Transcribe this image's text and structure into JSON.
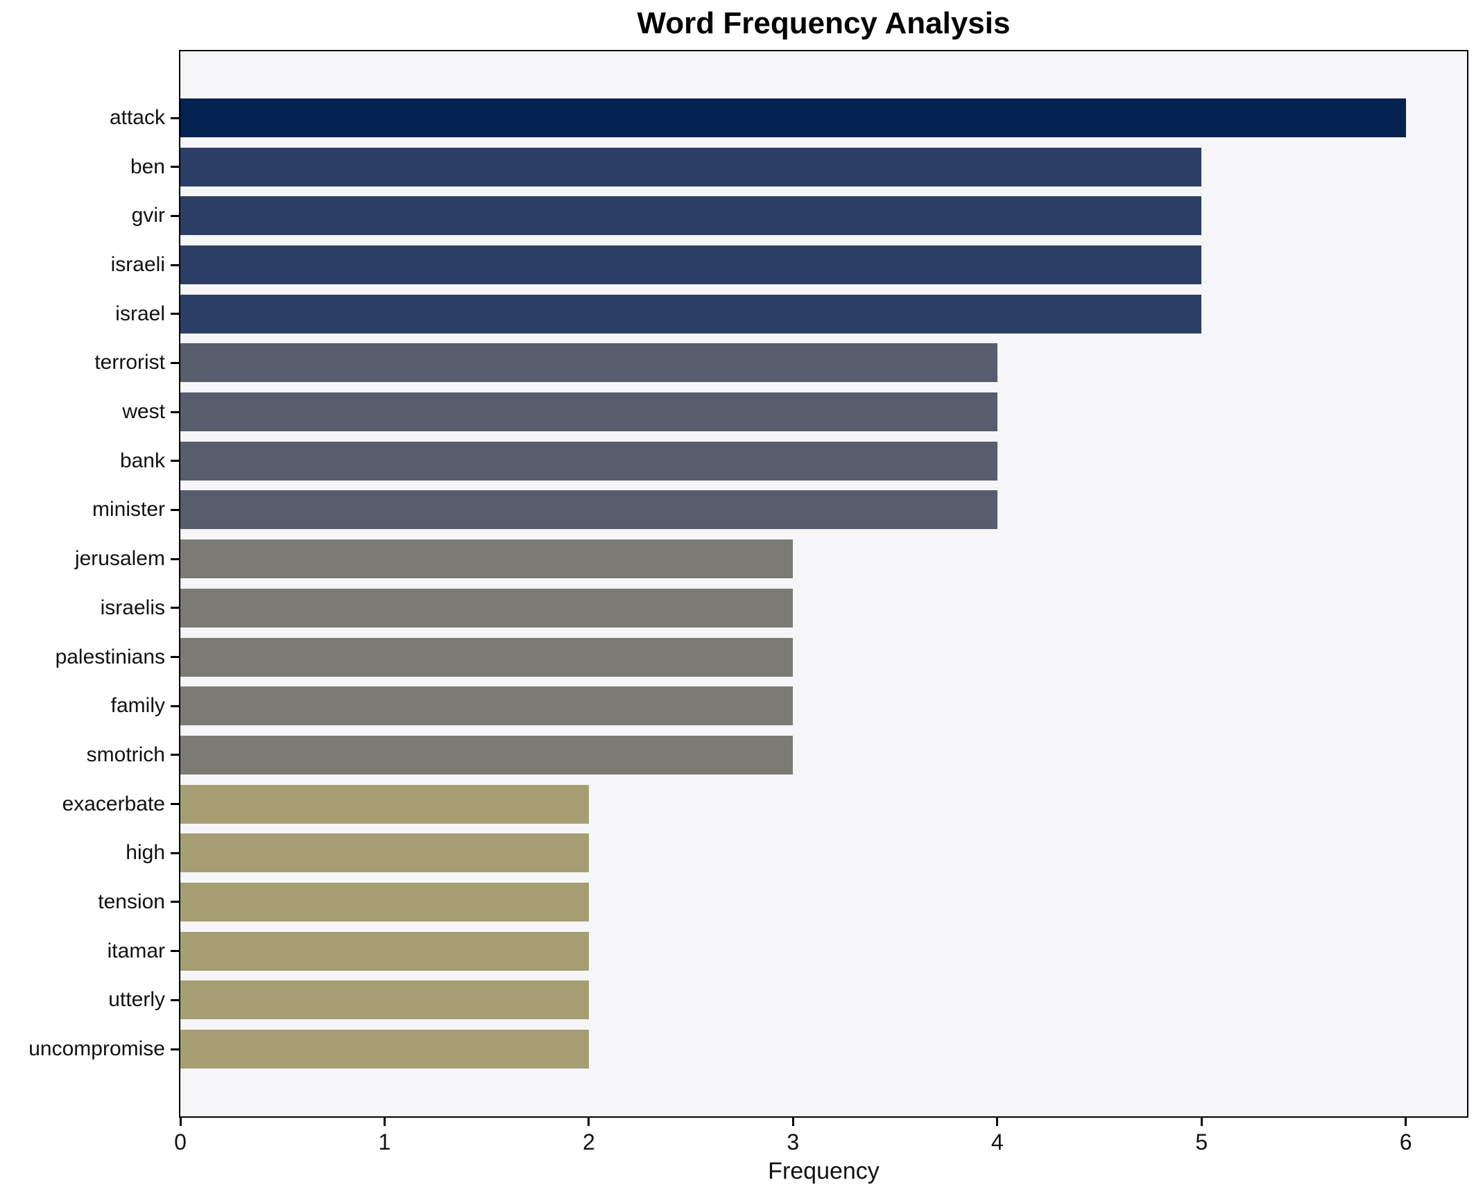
{
  "chart_data": {
    "type": "bar",
    "orientation": "horizontal",
    "title": "Word Frequency Analysis",
    "xlabel": "Frequency",
    "ylabel": "",
    "categories": [
      "attack",
      "ben",
      "gvir",
      "israeli",
      "israel",
      "terrorist",
      "west",
      "bank",
      "minister",
      "jerusalem",
      "israelis",
      "palestinians",
      "family",
      "smotrich",
      "exacerbate",
      "high",
      "tension",
      "itamar",
      "utterly",
      "uncompromise"
    ],
    "values": [
      6,
      5,
      5,
      5,
      5,
      4,
      4,
      4,
      4,
      3,
      3,
      3,
      3,
      3,
      2,
      2,
      2,
      2,
      2,
      2
    ],
    "x_ticks": [
      "0",
      "1",
      "2",
      "3",
      "4",
      "5",
      "6"
    ],
    "xlim": [
      0,
      6.3
    ],
    "grid": false,
    "legend": null,
    "colors_by_value": {
      "6": "#03224f",
      "5": "#2d3f66",
      "4": "#575d6c",
      "3": "#7b7a75",
      "2": "#a69e73"
    },
    "plot_bg": "#f6f6f8",
    "spine_color": "#000000",
    "text_color": "#111111"
  }
}
